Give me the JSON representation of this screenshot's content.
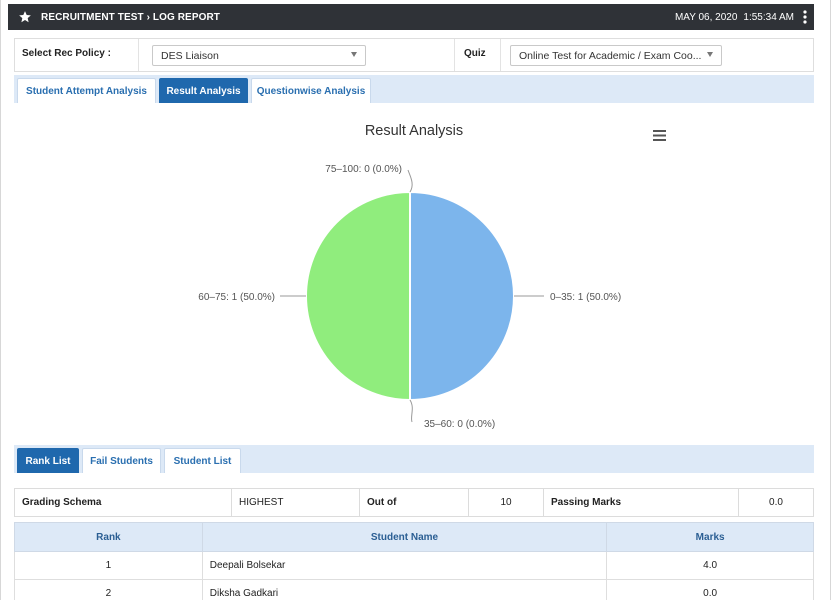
{
  "header": {
    "title": "RECRUITMENT TEST › LOG REPORT",
    "date": "MAY 06, 2020",
    "time": "1:55:34 AM",
    "icon": "star-icon",
    "menu_icon": "kebab-menu-icon"
  },
  "filters": {
    "rec_policy_label": "Select Rec Policy :",
    "rec_policy_value": "DES Liaison",
    "quiz_label": "Quiz",
    "quiz_value": "Online Test for Academic / Exam Coo..."
  },
  "analysis_tabs": [
    {
      "label": "Student Attempt Analysis",
      "active": false
    },
    {
      "label": "Result Analysis",
      "active": true
    },
    {
      "label": "Questionwise Analysis",
      "active": false
    }
  ],
  "chart_data": {
    "type": "pie",
    "title": "Result Analysis",
    "slices": [
      {
        "label": "0–35: 1 (50.0%)",
        "category": "0–35",
        "value": 1,
        "percent": 50.0,
        "color": "#7cb5ec"
      },
      {
        "label": "35–60: 0 (0.0%)",
        "category": "35–60",
        "value": 0,
        "percent": 0.0,
        "color": "#434348"
      },
      {
        "label": "60–75: 1 (50.0%)",
        "category": "60–75",
        "value": 1,
        "percent": 50.0,
        "color": "#90ed7d"
      },
      {
        "label": "75–100: 0 (0.0%)",
        "category": "75–100",
        "value": 0,
        "percent": 0.0,
        "color": "#f7a35c"
      }
    ]
  },
  "list_tabs": [
    {
      "label": "Rank List",
      "active": true
    },
    {
      "label": "Fail Students",
      "active": false
    },
    {
      "label": "Student List",
      "active": false
    }
  ],
  "schema": {
    "grading_label": "Grading Schema",
    "grading_value": "HIGHEST",
    "outof_label": "Out of",
    "outof_value": "10",
    "passing_label": "Passing Marks",
    "passing_value": "0.0"
  },
  "rank_table": {
    "headers": [
      "Rank",
      "Student Name",
      "Marks"
    ],
    "rows": [
      [
        "1",
        "Deepali Bolsekar",
        "4.0"
      ],
      [
        "2",
        "Diksha Gadkari",
        "0.0"
      ]
    ]
  }
}
